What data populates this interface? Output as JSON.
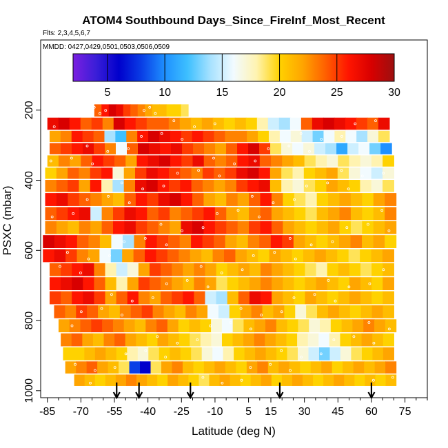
{
  "chart_data": {
    "type": "heatmap",
    "title": "ATOM4 Southbound Days_Since_FireInf_Most_Recent",
    "subtitle": "Flts: 2,3,4,5,6,7",
    "annotation": "MMDD: 0427,0429,0501,0503,0506,0509",
    "xlabel": "Latitude (deg N)",
    "ylabel": "PSXC (mbar)",
    "xlim": [
      -88,
      85
    ],
    "ylim": [
      1020,
      0
    ],
    "x_ticks": [
      -85,
      -70,
      -55,
      -40,
      -25,
      -10,
      5,
      15,
      30,
      45,
      60,
      75
    ],
    "y_ticks": [
      200,
      400,
      600,
      800,
      1000
    ],
    "colorbar": {
      "range": [
        2,
        30
      ],
      "ticks": [
        5,
        10,
        15,
        20,
        25,
        30
      ],
      "colors": [
        "#7a1fe0",
        "#3a1ed8",
        "#0000cc",
        "#0a3fe6",
        "#1e90ff",
        "#3ec0ff",
        "#a8e2ff",
        "#f2fbff",
        "#fff3b0",
        "#ffd200",
        "#ffa500",
        "#ff6000",
        "#ff1500",
        "#d80000",
        "#9c1010"
      ]
    },
    "arrow_latitudes": [
      -54,
      -44,
      -21,
      19,
      60
    ],
    "pressure_levels_mbar": [
      200,
      240,
      275,
      310,
      345,
      380,
      415,
      455,
      495,
      535,
      575,
      615,
      655,
      695,
      735,
      775,
      815,
      855,
      895,
      935,
      970
    ],
    "series": [
      {
        "pressure": 200,
        "lat_range": [
          -64,
          -22
        ],
        "values": [
          24,
          26,
          28,
          27,
          25,
          24,
          23,
          22,
          21,
          21,
          20,
          20,
          19
        ]
      },
      {
        "pressure": 240,
        "lat_range": [
          -85,
          68
        ],
        "values": [
          27,
          28,
          26,
          24,
          25,
          23,
          28,
          26,
          25,
          24,
          24,
          23,
          22,
          21,
          22,
          21,
          20,
          21,
          20,
          18,
          15,
          14,
          16,
          24,
          27,
          28,
          27,
          26,
          25,
          24,
          27
        ]
      },
      {
        "pressure": 275,
        "lat_range": [
          -84,
          68
        ],
        "values": [
          22,
          23,
          26,
          25,
          24,
          14,
          12,
          23,
          26,
          28,
          27,
          26,
          25,
          26,
          25,
          24,
          23,
          23,
          22,
          20,
          18,
          16,
          17,
          15,
          13,
          16,
          18,
          16,
          14,
          17,
          19
        ]
      },
      {
        "pressure": 310,
        "lat_range": [
          -84,
          69
        ],
        "values": [
          24,
          25,
          26,
          27,
          25,
          23,
          16,
          24,
          28,
          27,
          26,
          27,
          25,
          24,
          23,
          22,
          24,
          26,
          28,
          25,
          19,
          17,
          16,
          17,
          15,
          14,
          11,
          15,
          16,
          13,
          10
        ]
      },
      {
        "pressure": 345,
        "lat_range": [
          -85,
          70
        ],
        "values": [
          21,
          23,
          22,
          24,
          26,
          25,
          24,
          22,
          26,
          27,
          28,
          26,
          25,
          27,
          24,
          23,
          24,
          26,
          27,
          24,
          23,
          22,
          21,
          19,
          18,
          17,
          19,
          18,
          17,
          18,
          20
        ]
      },
      {
        "pressure": 380,
        "lat_range": [
          -86,
          70
        ],
        "values": [
          20,
          22,
          24,
          23,
          25,
          26,
          17,
          22,
          25,
          27,
          26,
          25,
          24,
          23,
          25,
          24,
          25,
          27,
          28,
          26,
          22,
          19,
          18,
          20,
          21,
          22,
          19,
          17,
          16,
          15,
          17
        ]
      },
      {
        "pressure": 415,
        "lat_range": [
          -86,
          70
        ],
        "values": [
          23,
          24,
          25,
          22,
          26,
          18,
          14,
          23,
          27,
          28,
          26,
          25,
          26,
          24,
          23,
          22,
          23,
          25,
          26,
          27,
          21,
          18,
          17,
          19,
          20,
          22,
          21,
          20,
          18,
          17,
          19
        ]
      },
      {
        "pressure": 455,
        "lat_range": [
          -86,
          71
        ],
        "values": [
          26,
          27,
          25,
          24,
          23,
          22,
          21,
          24,
          26,
          25,
          27,
          28,
          26,
          24,
          22,
          21,
          23,
          22,
          24,
          26,
          23,
          20,
          19,
          18,
          20,
          21,
          22,
          21,
          20,
          22,
          23
        ]
      },
      {
        "pressure": 495,
        "lat_range": [
          -86,
          71
        ],
        "values": [
          24,
          25,
          26,
          27,
          15,
          23,
          25,
          27,
          26,
          24,
          25,
          23,
          24,
          25,
          26,
          24,
          22,
          21,
          23,
          24,
          22,
          21,
          20,
          19,
          21,
          22,
          23,
          21,
          20,
          21,
          23
        ]
      },
      {
        "pressure": 535,
        "lat_range": [
          -86,
          71
        ],
        "values": [
          23,
          22,
          21,
          23,
          22,
          24,
          26,
          27,
          25,
          24,
          23,
          22,
          27,
          28,
          26,
          25,
          24,
          23,
          25,
          26,
          24,
          22,
          21,
          20,
          21,
          22,
          20,
          19,
          20,
          21,
          22
        ]
      },
      {
        "pressure": 575,
        "lat_range": [
          -87,
          71
        ],
        "values": [
          28,
          27,
          26,
          24,
          23,
          21,
          16,
          14,
          23,
          26,
          25,
          24,
          23,
          26,
          25,
          24,
          22,
          21,
          23,
          24,
          26,
          25,
          22,
          21,
          20,
          21,
          22,
          23,
          21,
          22,
          20
        ]
      },
      {
        "pressure": 615,
        "lat_range": [
          -87,
          70
        ],
        "values": [
          26,
          27,
          25,
          23,
          22,
          16,
          13,
          22,
          24,
          26,
          25,
          24,
          23,
          22,
          21,
          23,
          24,
          22,
          21,
          20,
          22,
          21,
          20,
          21,
          22,
          21,
          20,
          19,
          20,
          21,
          22
        ]
      },
      {
        "pressure": 655,
        "lat_range": [
          -84,
          70
        ],
        "values": [
          24,
          25,
          26,
          27,
          23,
          18,
          15,
          17,
          22,
          25,
          24,
          23,
          22,
          23,
          22,
          20,
          21,
          22,
          21,
          23,
          22,
          21,
          20,
          19,
          18,
          20,
          21,
          20,
          19,
          20,
          21
        ]
      },
      {
        "pressure": 695,
        "lat_range": [
          -84,
          70
        ],
        "values": [
          26,
          27,
          28,
          26,
          24,
          21,
          18,
          22,
          25,
          24,
          23,
          22,
          21,
          23,
          22,
          19,
          20,
          21,
          22,
          23,
          22,
          21,
          20,
          21,
          22,
          21,
          20,
          22,
          21,
          20,
          22
        ]
      },
      {
        "pressure": 735,
        "lat_range": [
          -84,
          70
        ],
        "values": [
          25,
          24,
          26,
          27,
          25,
          22,
          24,
          26,
          23,
          22,
          24,
          25,
          26,
          24,
          15,
          14,
          21,
          24,
          27,
          26,
          22,
          21,
          20,
          22,
          21,
          20,
          21,
          22,
          21,
          20,
          21
        ]
      },
      {
        "pressure": 775,
        "lat_range": [
          -82,
          70
        ],
        "values": [
          24,
          23,
          25,
          24,
          22,
          21,
          23,
          24,
          25,
          23,
          22,
          21,
          23,
          22,
          16,
          15,
          20,
          22,
          23,
          21,
          22,
          20,
          17,
          19,
          21,
          22,
          21,
          20,
          21,
          22,
          21
        ]
      },
      {
        "pressure": 815,
        "lat_range": [
          -80,
          71
        ],
        "values": [
          22,
          23,
          24,
          25,
          24,
          23,
          22,
          21,
          23,
          24,
          22,
          20,
          21,
          20,
          17,
          16,
          19,
          21,
          22,
          23,
          21,
          20,
          19,
          17,
          18,
          20,
          21,
          22,
          23,
          22,
          21
        ]
      },
      {
        "pressure": 855,
        "lat_range": [
          -79,
          70
        ],
        "values": [
          23,
          24,
          22,
          21,
          23,
          24,
          22,
          21,
          20,
          22,
          21,
          20,
          19,
          18,
          17,
          20,
          21,
          22,
          23,
          22,
          21,
          20,
          18,
          17,
          16,
          18,
          20,
          21,
          22,
          21,
          20
        ]
      },
      {
        "pressure": 895,
        "lat_range": [
          -78,
          70
        ],
        "values": [
          20,
          20,
          21,
          22,
          21,
          20,
          18,
          17,
          19,
          20,
          21,
          20,
          19,
          17,
          16,
          18,
          20,
          21,
          22,
          21,
          20,
          19,
          17,
          15,
          13,
          15,
          17,
          19,
          20,
          21,
          22
        ]
      },
      {
        "pressure": 935,
        "lat_range": [
          -77,
          71
        ],
        "values": [
          22,
          23,
          24,
          22,
          21,
          19,
          8,
          6,
          19,
          22,
          23,
          21,
          20,
          21,
          22,
          21,
          20,
          22,
          23,
          21,
          22,
          21,
          20,
          21,
          22,
          20,
          21,
          22,
          21,
          22,
          23
        ]
      },
      {
        "pressure": 970,
        "lat_range": [
          -73,
          71
        ],
        "values": [
          22,
          21,
          20,
          21,
          22,
          23,
          22,
          21,
          20,
          22,
          21,
          20,
          19,
          21,
          22,
          21,
          20,
          21,
          22,
          20,
          21,
          22,
          21,
          20,
          21,
          22,
          21,
          20,
          21,
          20,
          21
        ]
      }
    ]
  }
}
